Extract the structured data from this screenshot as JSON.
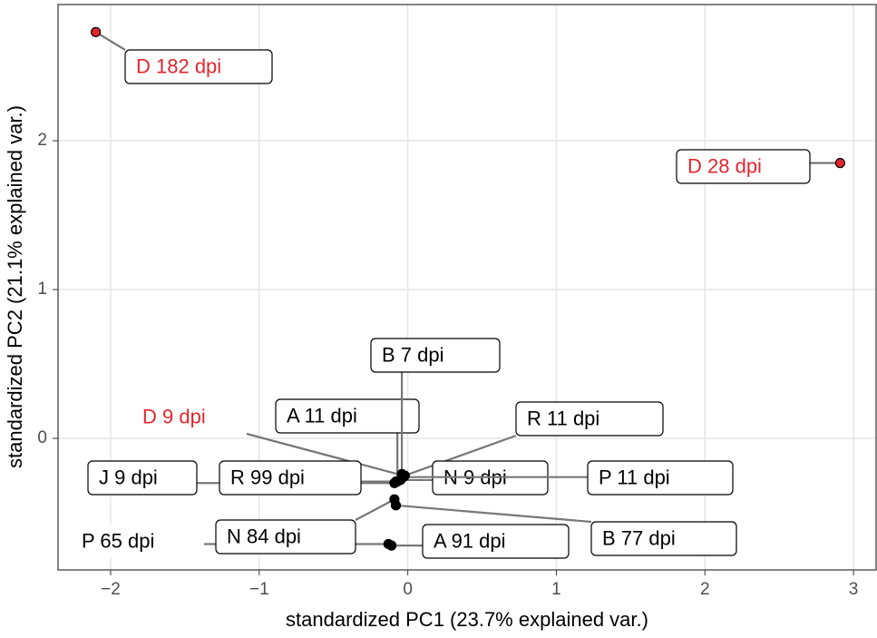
{
  "chart_data": {
    "type": "scatter",
    "x_label": "standardized PC1 (23.7% explained var.)",
    "y_label": "standardized PC2 (21.1% explained var.)",
    "xlim": [
      -2.354,
      3.152
    ],
    "ylim": [
      -0.884,
      2.915
    ],
    "xticks": [
      {
        "value": -2,
        "label": "−2"
      },
      {
        "value": -1,
        "label": "−1"
      },
      0,
      1,
      2,
      3
    ],
    "yticks": [
      0,
      1,
      2
    ],
    "grid": true,
    "points": [
      {
        "label": "D 182 dpi",
        "x": -2.1,
        "y": 2.73,
        "color": "#e3262d"
      },
      {
        "label": "D 28 dpi",
        "x": 2.91,
        "y": 1.85,
        "color": "#e3262d"
      },
      {
        "label": "D 9 dpi",
        "x": -0.03,
        "y": -0.25,
        "color": "#e3262d"
      },
      {
        "label": "A 11 dpi",
        "x": -0.07,
        "y": -0.29,
        "color": "#000000"
      },
      {
        "label": "B 7 dpi",
        "x": -0.04,
        "y": -0.24,
        "color": "#000000"
      },
      {
        "label": "R 11 dpi",
        "x": -0.02,
        "y": -0.25,
        "color": "#000000"
      },
      {
        "label": "J 9 dpi",
        "x": -0.09,
        "y": -0.3,
        "color": "#000000"
      },
      {
        "label": "R 99 dpi",
        "x": -0.08,
        "y": -0.29,
        "color": "#000000"
      },
      {
        "label": "N 9 dpi",
        "x": -0.05,
        "y": -0.28,
        "color": "#000000"
      },
      {
        "label": "P 11 dpi",
        "x": -0.03,
        "y": -0.26,
        "color": "#000000"
      },
      {
        "label": "P 65 dpi",
        "x": -0.13,
        "y": -0.71,
        "color": "#000000"
      },
      {
        "label": "N 84 dpi",
        "x": -0.09,
        "y": -0.41,
        "color": "#000000"
      },
      {
        "label": "A 91 dpi",
        "x": -0.11,
        "y": -0.72,
        "color": "#000000"
      },
      {
        "label": "B 77 dpi",
        "x": -0.08,
        "y": -0.45,
        "color": "#000000"
      }
    ]
  }
}
